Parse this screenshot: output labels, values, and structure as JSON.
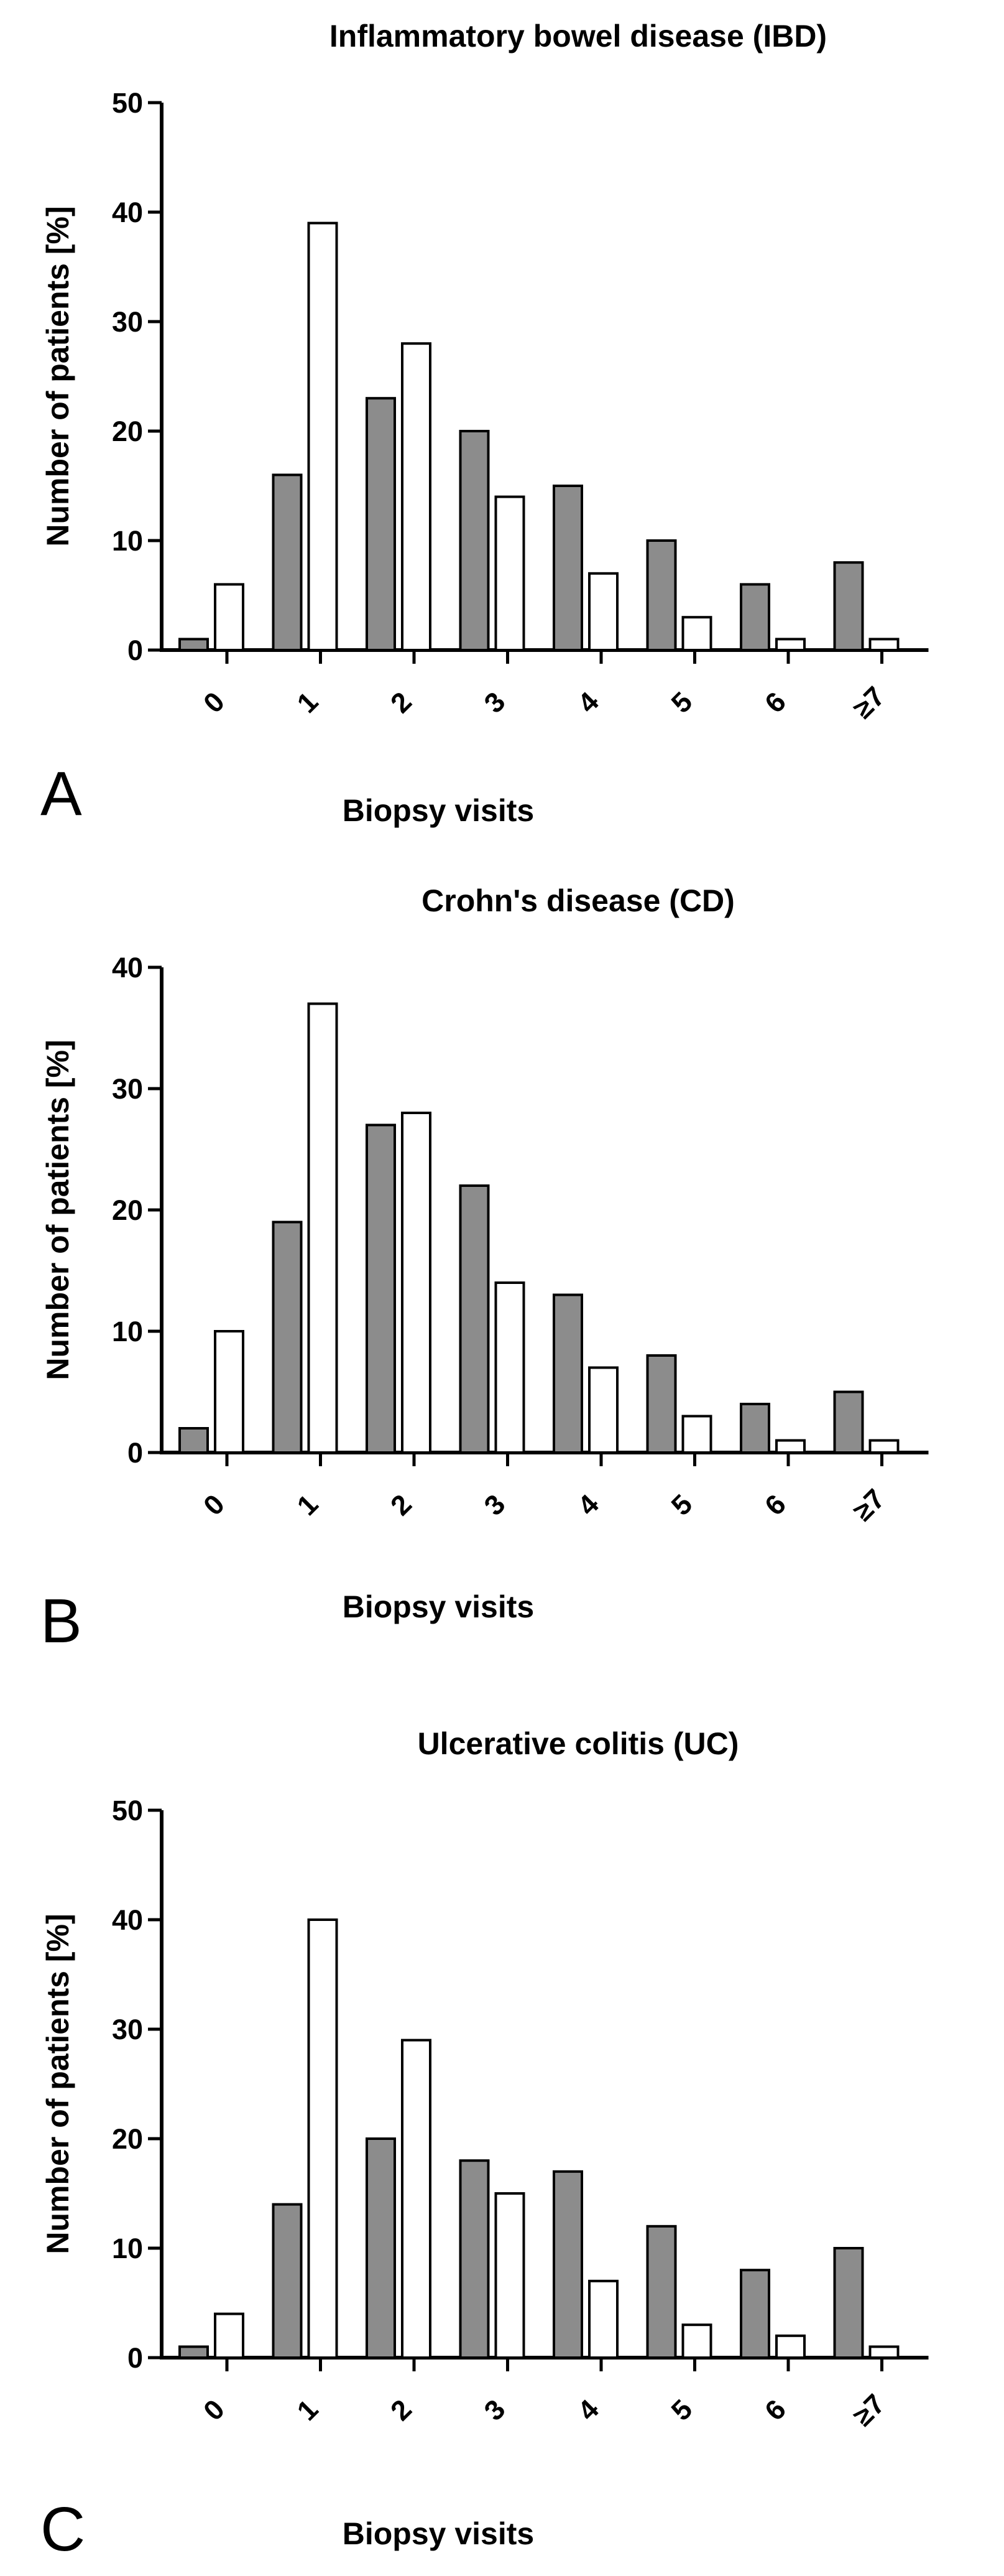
{
  "chart_data": [
    {
      "type": "bar",
      "panel": "A",
      "title": "Inflammatory bowel disease (IBD)",
      "xlabel": "Biopsy visits",
      "ylabel": "Number of patients [%]",
      "categories": [
        "0",
        "1",
        "2",
        "3",
        "4",
        "5",
        "6",
        "≥7"
      ],
      "ylim": [
        0,
        50
      ],
      "yticks": [
        "0",
        "10",
        "20",
        "30",
        "40",
        "50"
      ],
      "series": [
        {
          "values": [
            1,
            16,
            23,
            20,
            15,
            10,
            6,
            8
          ],
          "color": "#8c8c8c"
        },
        {
          "values": [
            6,
            39,
            28,
            14,
            7,
            3,
            1,
            1
          ],
          "color": "#ffffff"
        }
      ],
      "grid": false
    },
    {
      "type": "bar",
      "panel": "B",
      "title": "Crohn's disease (CD)",
      "xlabel": "Biopsy visits",
      "ylabel": "Number of patients [%]",
      "categories": [
        "0",
        "1",
        "2",
        "3",
        "4",
        "5",
        "6",
        "≥7"
      ],
      "ylim": [
        0,
        40
      ],
      "yticks": [
        "0",
        "10",
        "20",
        "30",
        "40"
      ],
      "series": [
        {
          "values": [
            2,
            19,
            27,
            22,
            13,
            8,
            4,
            5
          ],
          "color": "#8c8c8c"
        },
        {
          "values": [
            10,
            37,
            28,
            14,
            7,
            3,
            1,
            1
          ],
          "color": "#ffffff"
        }
      ],
      "grid": false
    },
    {
      "type": "bar",
      "panel": "C",
      "title": "Ulcerative colitis (UC)",
      "xlabel": "Biopsy visits",
      "ylabel": "Number of patients [%]",
      "categories": [
        "0",
        "1",
        "2",
        "3",
        "4",
        "5",
        "6",
        "≥7"
      ],
      "ylim": [
        0,
        50
      ],
      "yticks": [
        "0",
        "10",
        "20",
        "30",
        "40",
        "50"
      ],
      "series": [
        {
          "values": [
            1,
            14,
            20,
            18,
            17,
            12,
            8,
            10
          ],
          "color": "#8c8c8c"
        },
        {
          "values": [
            4,
            40,
            29,
            15,
            7,
            3,
            2,
            1
          ],
          "color": "#ffffff"
        }
      ],
      "grid": false
    }
  ]
}
